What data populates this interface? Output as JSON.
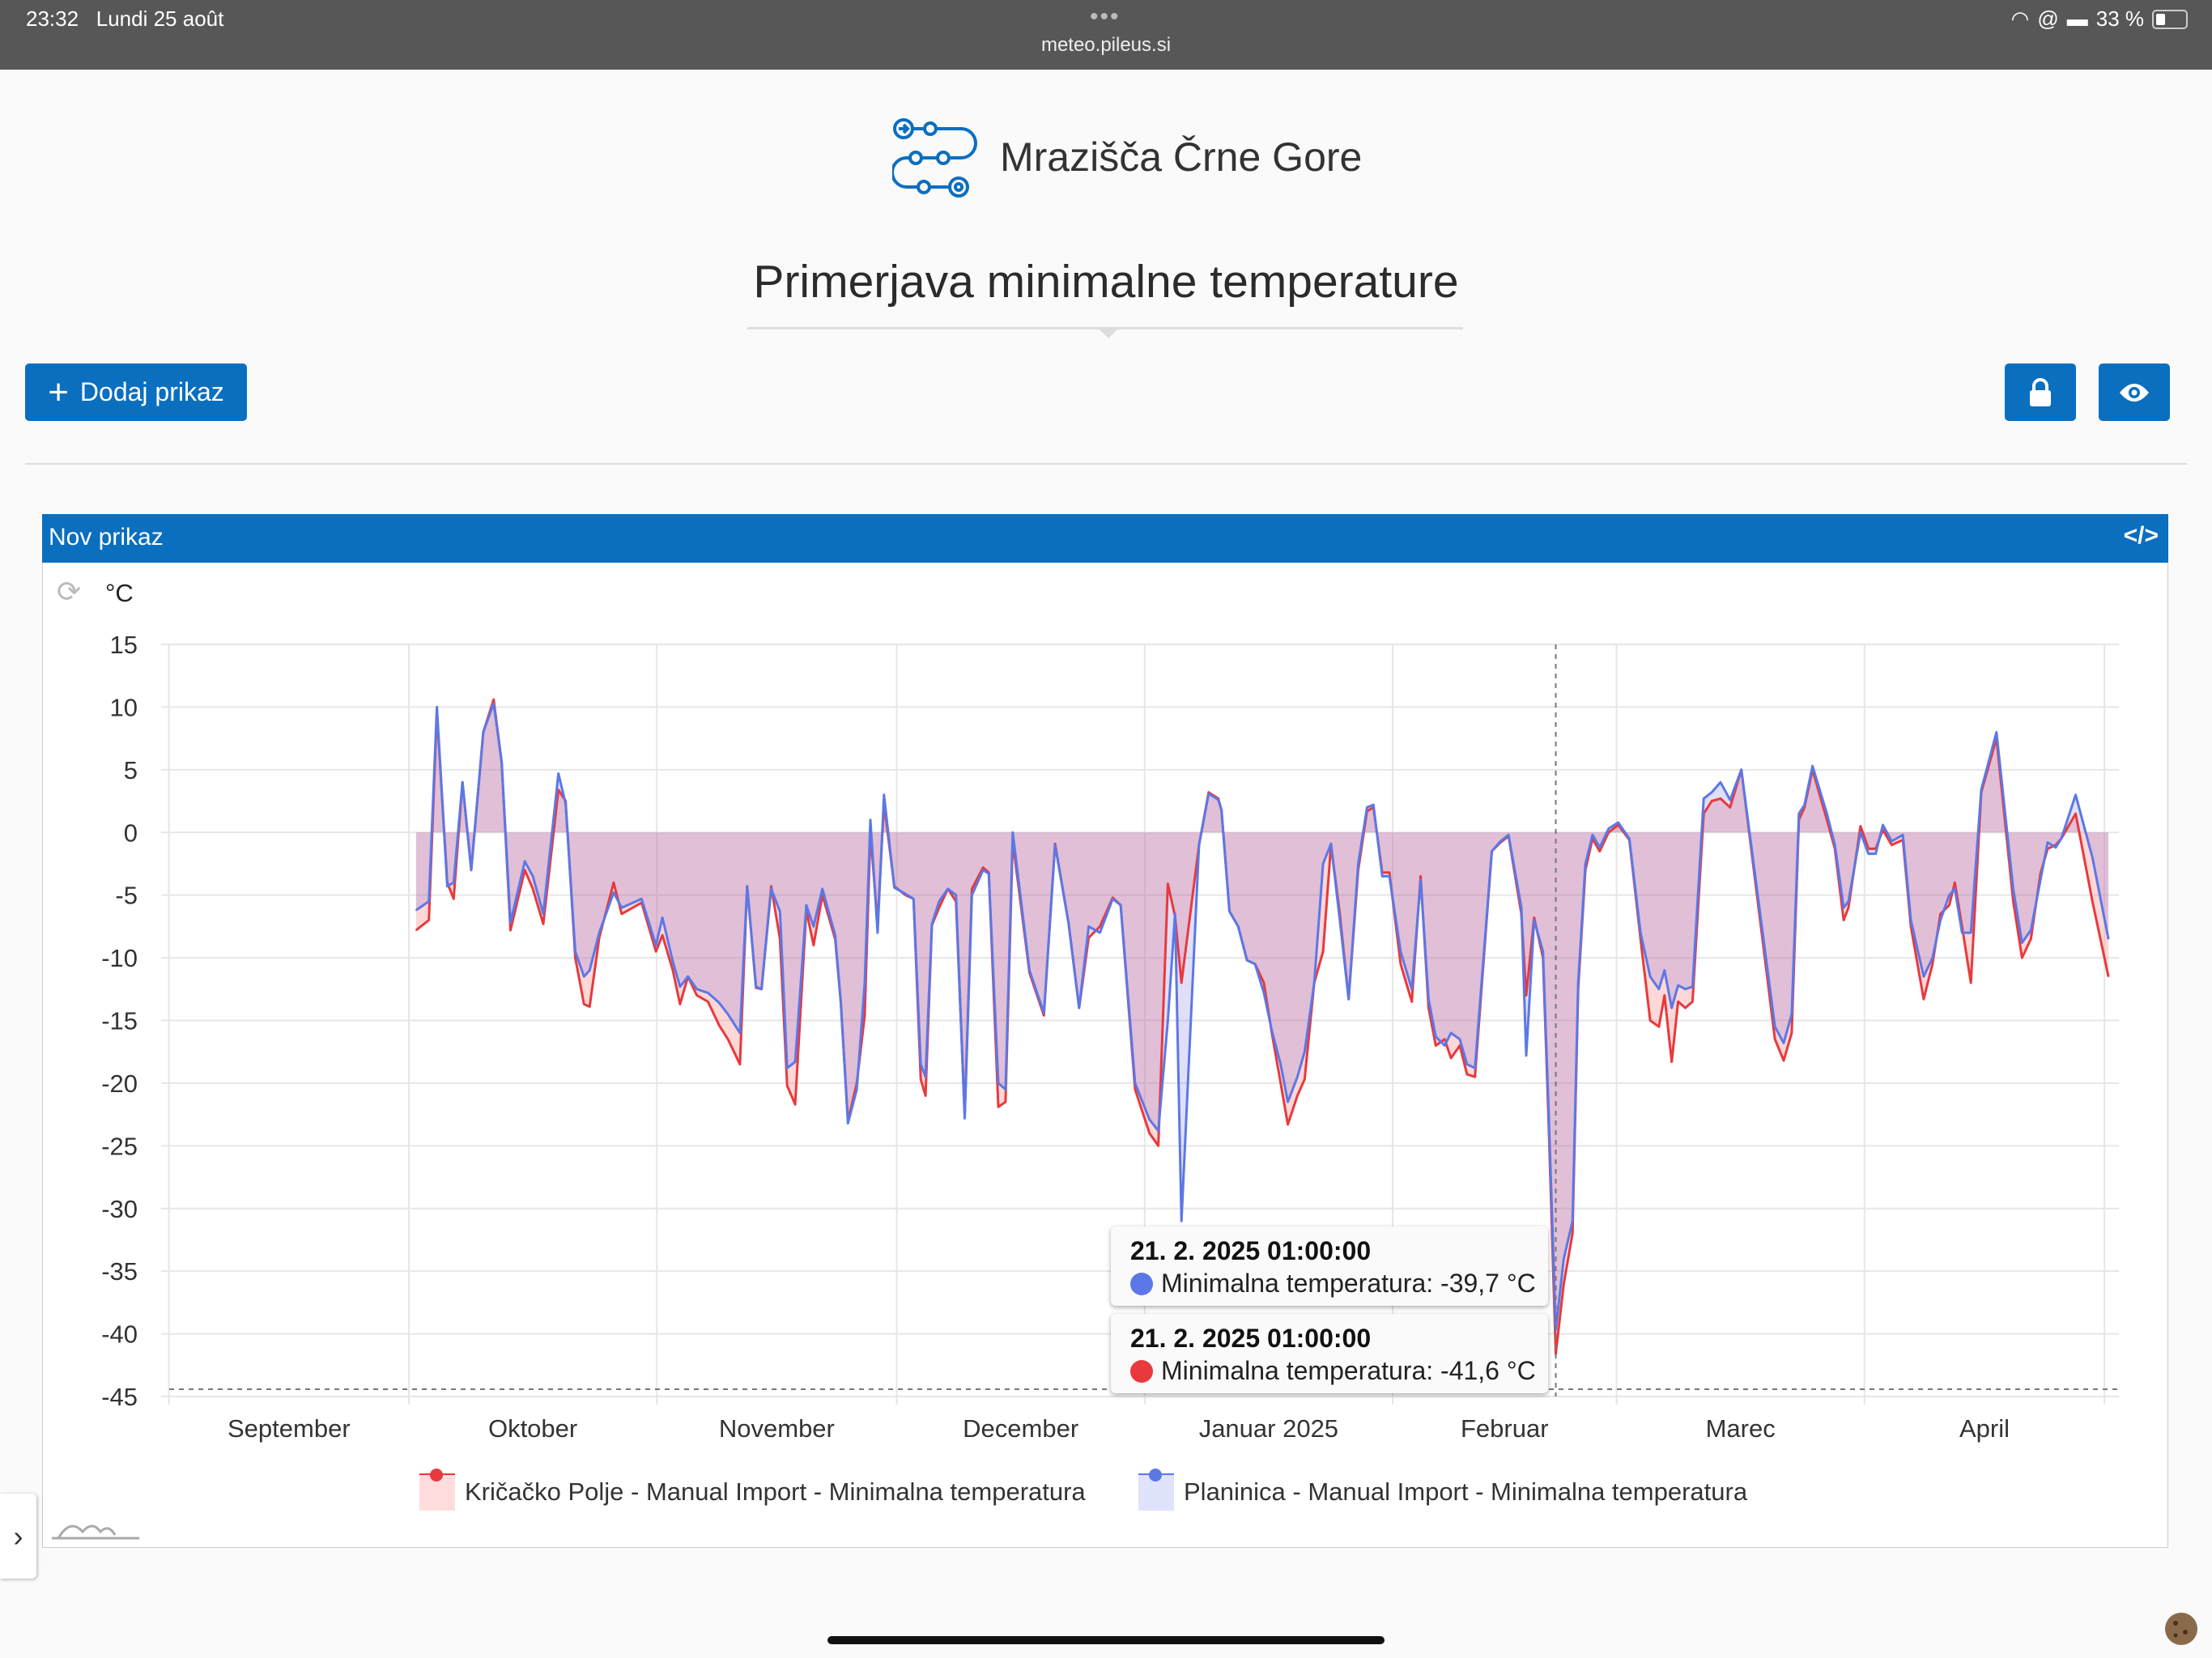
{
  "status_bar": {
    "time": "23:32",
    "date": "Lundi 25 août",
    "url": "meteo.pileus.si",
    "battery": "33 %",
    "dots": "•••"
  },
  "header": {
    "site_title": "Mrazišča Črne Gore",
    "page_title": "Primerjava minimalne temperature"
  },
  "toolbar": {
    "add_label": "Dodaj prikaz",
    "add_icon": "+"
  },
  "panel": {
    "title": "Nov prikaz",
    "code_icon": "</>",
    "refresh_icon": "⟳",
    "unit": "°C",
    "sidebar_toggle": "›"
  },
  "colors": {
    "accent": "#0b6fbf",
    "red_series": "#e8393d",
    "blue_series": "#5b78e6"
  },
  "tooltips": [
    {
      "date": "21. 2. 2025 01:00:00",
      "text": "Minimalna temperatura: -39,7 °C",
      "color": "#5b78e6"
    },
    {
      "date": "21. 2. 2025 01:00:00",
      "text": "Minimalna temperatura: -41,6 °C",
      "color": "#e8393d"
    }
  ],
  "chart_data": {
    "type": "area",
    "ylabel": "°C",
    "ylim": [
      -45,
      15
    ],
    "yticks": [
      15,
      10,
      5,
      0,
      -5,
      -10,
      -15,
      -20,
      -25,
      -30,
      -35,
      -40,
      -45
    ],
    "x_unit": "days since 2024-10-01",
    "xlim": [
      -30,
      215
    ],
    "month_starts": [
      -30,
      0,
      31,
      61,
      92,
      123,
      151,
      182,
      212
    ],
    "month_labels": [
      "September",
      "Oktober",
      "November",
      "December",
      "Januar 2025",
      "Februar",
      "Marec",
      "April"
    ],
    "crosshair_day": 143.4,
    "legend_placement": "bottom",
    "x_days": [
      0.9,
      2.5,
      3.5,
      4.8,
      5.6,
      6.7,
      7.8,
      9.3,
      10.6,
      11.6,
      12.7,
      14.5,
      15.5,
      16.8,
      18.7,
      19.6,
      20.8,
      21.9,
      22.6,
      23.8,
      25.6,
      26.6,
      29.1,
      30.9,
      31.7,
      33,
      33.9,
      34.9,
      36,
      37.4,
      38.8,
      39.9,
      41.4,
      42.3,
      43.4,
      44.1,
      45.3,
      46.4,
      47.3,
      48.3,
      49.7,
      50.6,
      51.7,
      53.3,
      54,
      54.9,
      56,
      57,
      57.7,
      58.6,
      59.4,
      60.7,
      62.1,
      63.1,
      64,
      64.6,
      65.4,
      66.3,
      67.4,
      68.4,
      69.5,
      70.4,
      71.8,
      72.5,
      73.7,
      74.6,
      75.5,
      77.6,
      79.4,
      80.8,
      82.5,
      83.8,
      85,
      86.4,
      88,
      89,
      90.8,
      92.6,
      93.7,
      94.9,
      95.8,
      96.6,
      98.8,
      100,
      101.2,
      101.6,
      102.6,
      103.7,
      104.8,
      105.8,
      106.9,
      107.9,
      109,
      109.9,
      111.1,
      112,
      113.2,
      114.3,
      115.3,
      116.4,
      117.5,
      118.7,
      119.8,
      120.6,
      121.7,
      122.6,
      124,
      125.4,
      126.5,
      127.5,
      128.4,
      129.5,
      130.3,
      131.4,
      132.3,
      133.3,
      135.4,
      136.5,
      137.5,
      139.1,
      139.7,
      140.7,
      141.8,
      142.5,
      143.4,
      144.4,
      145.5,
      146.2,
      147.1,
      148,
      148.9,
      150,
      151.2,
      152.6,
      154,
      155.2,
      156.3,
      157,
      157.9,
      158.7,
      159.6,
      160.5,
      161.9,
      162.9,
      164,
      165.2,
      166.6,
      170.8,
      171.9,
      172.9,
      173.8,
      174.5,
      175.5,
      177.3,
      178.3,
      179.4,
      180,
      181.5,
      182.5,
      183.4,
      184.3,
      185.4,
      186.8,
      187.8,
      189.4,
      190.5,
      191.5,
      192.6,
      193.3,
      194.2,
      195.3,
      196.6,
      198.5,
      200.6,
      201.7,
      202.8,
      204,
      204.9,
      205.9,
      206.6,
      208.4,
      210.5,
      212.5
    ],
    "series": [
      {
        "name": "Kričačko Polje - Manual Import - Minimalna temperatura",
        "color": "#e8393d",
        "fill": "rgba(250,110,110,0.28)",
        "values": [
          -7.8,
          -7,
          9.6,
          -4,
          -5.3,
          4,
          -3,
          8,
          10.6,
          5.6,
          -7.8,
          -3,
          -4.5,
          -7.3,
          3.4,
          2.5,
          -10,
          -13.7,
          -13.9,
          -8.4,
          -4,
          -6.5,
          -5.6,
          -9.5,
          -8.2,
          -11,
          -13.7,
          -11.5,
          -13,
          -13.5,
          -15.4,
          -16.5,
          -18.5,
          -4.3,
          -12.4,
          -12.5,
          -4.3,
          -8.5,
          -20.2,
          -21.7,
          -6.2,
          -9,
          -5,
          -8.5,
          -13.5,
          -23,
          -20,
          -14.6,
          0,
          -7.3,
          2.3,
          -4.3,
          -5,
          -5.3,
          -19.7,
          -21,
          -7.4,
          -6,
          -4.5,
          -5.5,
          -22.5,
          -4.5,
          -2.8,
          -3.2,
          -21.9,
          -21.5,
          -0.7,
          -11.2,
          -14.6,
          -0.9,
          -7.3,
          -14,
          -8.4,
          -7.5,
          -5.2,
          -5.8,
          -20.5,
          -24,
          -25,
          -4.1,
          -6.7,
          -12,
          -1,
          3.2,
          2.7,
          1.8,
          -6.3,
          -7.5,
          -10.2,
          -10.5,
          -12,
          -16,
          -20,
          -23.3,
          -21,
          -19.7,
          -12,
          -9.5,
          -1,
          -6.5,
          -13.3,
          -3,
          1.7,
          2,
          -3.2,
          -3.2,
          -10.5,
          -13.5,
          -3.5,
          -14,
          -17,
          -16.5,
          -18,
          -17,
          -19.3,
          -19.5,
          -1.5,
          -0.8,
          -0.3,
          -6.5,
          -13,
          -6.8,
          -10,
          -23,
          -41.6,
          -36,
          -32,
          -12.5,
          -3,
          -0.5,
          -1.5,
          0,
          0.6,
          -0.6,
          -8.5,
          -15,
          -15.5,
          -13,
          -18.3,
          -13.5,
          -14,
          -13.5,
          1.5,
          2.5,
          2.7,
          2,
          5,
          -16.5,
          -18.2,
          -16,
          1,
          2,
          5,
          1,
          -1.3,
          -7,
          -6,
          0.5,
          -1.3,
          -1.3,
          0.2,
          -1,
          -0.6,
          -7.5,
          -13.3,
          -10.5,
          -6.5,
          -5.8,
          -4,
          -7.5,
          -12,
          3.2,
          7.5,
          -5.5,
          -10,
          -8.5,
          -3.3,
          -1.3,
          -1,
          -0.5,
          1.5,
          -5.5,
          -11.5
        ]
      },
      {
        "name": "Planinica - Manual Import - Minimalna temperatura",
        "color": "#5b78e6",
        "fill": "rgba(120,110,220,0.22)",
        "values": [
          -6.2,
          -5.5,
          10,
          -4.3,
          -4,
          4,
          -3,
          8,
          10.3,
          5.6,
          -7.2,
          -2.3,
          -3.5,
          -6.5,
          4.7,
          2.3,
          -9.5,
          -11.5,
          -11,
          -8,
          -4.8,
          -6,
          -5.3,
          -9,
          -6.8,
          -10.3,
          -12.3,
          -11.5,
          -12.5,
          -12.8,
          -13.6,
          -14.5,
          -16,
          -4.3,
          -12.3,
          -12.5,
          -4.5,
          -6.3,
          -18.8,
          -18.3,
          -5.8,
          -7.5,
          -4.5,
          -8.2,
          -13.5,
          -23.2,
          -20.5,
          -12,
          1,
          -8,
          3,
          -4.4,
          -4.9,
          -5.3,
          -18.5,
          -19.5,
          -7.3,
          -5.5,
          -4.5,
          -5,
          -22.8,
          -5,
          -3,
          -3.3,
          -20,
          -20.5,
          0,
          -11,
          -14.4,
          -1,
          -7.3,
          -14,
          -7.5,
          -8,
          -5.3,
          -5.8,
          -20,
          -22.9,
          -23.8,
          -15,
          -6.5,
          -31,
          -1,
          3.1,
          2.6,
          1.8,
          -6.3,
          -7.5,
          -10.2,
          -10.5,
          -12.8,
          -15.8,
          -18.5,
          -21.5,
          -19.5,
          -17.5,
          -12,
          -2.5,
          -0.9,
          -7,
          -13.3,
          -2.5,
          2,
          2.2,
          -3.5,
          -3.5,
          -9.5,
          -12.5,
          -3.8,
          -13.3,
          -16.3,
          -17,
          -16,
          -16.5,
          -18.5,
          -18.8,
          -1.5,
          -0.7,
          -0.2,
          -6,
          -17.8,
          -7,
          -9.5,
          -22,
          -39.7,
          -34,
          -31,
          -12,
          -2.5,
          -0.2,
          -1.2,
          0.3,
          0.8,
          -0.5,
          -8,
          -11.5,
          -12.5,
          -11,
          -14,
          -12.2,
          -12.5,
          -12.3,
          2.7,
          3.2,
          4,
          2.6,
          5,
          -15.5,
          -16.8,
          -14.5,
          1.5,
          2.2,
          5.3,
          1.5,
          -1,
          -6,
          -5.5,
          0,
          -1.7,
          -1.7,
          0.6,
          -0.7,
          -0.2,
          -7,
          -11.5,
          -10,
          -7,
          -5,
          -4.5,
          -8,
          -8,
          3.4,
          8,
          -4.5,
          -8.8,
          -7.8,
          -3.8,
          -0.8,
          -1.2,
          -0.5,
          3,
          -2,
          -8.5
        ]
      }
    ]
  }
}
